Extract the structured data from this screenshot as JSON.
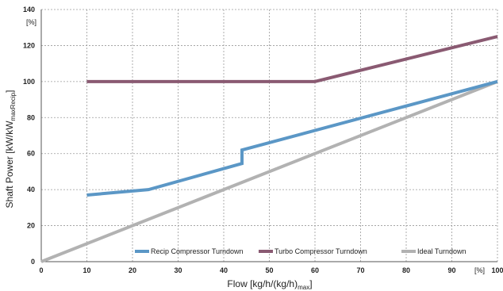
{
  "chart_data": {
    "type": "line",
    "title": "",
    "xlabel": {
      "main": "Flow [kg/h/(kg/h)",
      "sub": "max",
      "tail": "]"
    },
    "ylabel": {
      "main": "Shaft Power [kW/kW",
      "sub": "maxRecip",
      "tail": "]"
    },
    "x_unit": "[%]",
    "y_unit": "[%]",
    "xlim": [
      0,
      100
    ],
    "ylim": [
      0,
      140
    ],
    "x_ticks": [
      0,
      10,
      20,
      30,
      40,
      50,
      60,
      70,
      80,
      90,
      100
    ],
    "y_ticks": [
      0,
      20,
      40,
      60,
      80,
      100,
      120,
      140
    ],
    "grid": true,
    "legend_position": "bottom",
    "series": [
      {
        "name": "Recip Compressor Turndown",
        "color": "#5b97c6",
        "points": [
          [
            10,
            37
          ],
          [
            23.5,
            40
          ],
          [
            44,
            54.5
          ],
          [
            44,
            62
          ],
          [
            100,
            100
          ]
        ]
      },
      {
        "name": "Turbo Compressor Turndown",
        "color": "#8a5a72",
        "points": [
          [
            10,
            100
          ],
          [
            60,
            100
          ],
          [
            100,
            125
          ]
        ]
      },
      {
        "name": "Ideal Turndown",
        "color": "#b2b2b2",
        "points": [
          [
            0,
            0
          ],
          [
            100,
            100
          ]
        ]
      }
    ]
  }
}
